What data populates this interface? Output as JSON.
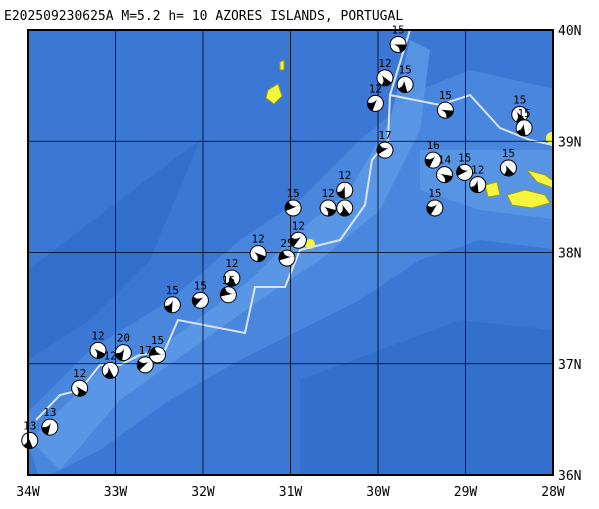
{
  "title": "E202509230625A M=5.2 h= 10 AZORES ISLANDS, PORTUGAL",
  "map": {
    "xlim": [
      -34,
      -28
    ],
    "ylim": [
      36,
      40
    ],
    "xticks": [
      {
        "value": -34,
        "label": "34W"
      },
      {
        "value": -33,
        "label": "33W"
      },
      {
        "value": -32,
        "label": "32W"
      },
      {
        "value": -31,
        "label": "31W"
      },
      {
        "value": -30,
        "label": "30W"
      },
      {
        "value": -29,
        "label": "29W"
      },
      {
        "value": -28,
        "label": "28W"
      }
    ],
    "yticks": [
      {
        "value": 36,
        "label": "36N"
      },
      {
        "value": 37,
        "label": "37N"
      },
      {
        "value": 38,
        "label": "38N"
      },
      {
        "value": 39,
        "label": "39N"
      },
      {
        "value": 40,
        "label": "40N"
      }
    ],
    "grid": true,
    "events": [
      {
        "lon": -29.77,
        "lat": 39.87,
        "depth": 15
      },
      {
        "lon": -29.92,
        "lat": 39.57,
        "depth": 12
      },
      {
        "lon": -29.69,
        "lat": 39.51,
        "depth": 15
      },
      {
        "lon": -30.03,
        "lat": 39.34,
        "depth": 12
      },
      {
        "lon": -29.92,
        "lat": 38.92,
        "depth": 17
      },
      {
        "lon": -29.23,
        "lat": 39.28,
        "depth": 15
      },
      {
        "lon": -28.38,
        "lat": 39.24,
        "depth": 15
      },
      {
        "lon": -28.33,
        "lat": 39.12,
        "depth": 15
      },
      {
        "lon": -29.37,
        "lat": 38.83,
        "depth": 16
      },
      {
        "lon": -29.01,
        "lat": 38.72,
        "depth": 15
      },
      {
        "lon": -29.24,
        "lat": 38.7,
        "depth": 14
      },
      {
        "lon": -28.51,
        "lat": 38.76,
        "depth": 15
      },
      {
        "lon": -28.86,
        "lat": 38.61,
        "depth": 12
      },
      {
        "lon": -29.35,
        "lat": 38.4,
        "depth": 15
      },
      {
        "lon": -30.97,
        "lat": 38.4,
        "depth": 15
      },
      {
        "lon": -30.57,
        "lat": 38.4,
        "depth": 12
      },
      {
        "lon": -30.38,
        "lat": 38.4,
        "depth": 12
      },
      {
        "lon": -30.38,
        "lat": 38.56,
        "depth": 12
      },
      {
        "lon": -30.91,
        "lat": 38.11,
        "depth": 12
      },
      {
        "lon": -31.04,
        "lat": 37.95,
        "depth": 25
      },
      {
        "lon": -31.37,
        "lat": 37.99,
        "depth": 12
      },
      {
        "lon": -31.67,
        "lat": 37.77,
        "depth": 12
      },
      {
        "lon": -32.35,
        "lat": 37.53,
        "depth": 15
      },
      {
        "lon": -32.03,
        "lat": 37.57,
        "depth": 15
      },
      {
        "lon": -31.71,
        "lat": 37.62,
        "depth": 16
      },
      {
        "lon": -33.2,
        "lat": 37.12,
        "depth": 12
      },
      {
        "lon": -33.06,
        "lat": 36.94,
        "depth": 12
      },
      {
        "lon": -32.91,
        "lat": 37.1,
        "depth": 20
      },
      {
        "lon": -32.66,
        "lat": 36.99,
        "depth": 17
      },
      {
        "lon": -32.52,
        "lat": 37.08,
        "depth": 15
      },
      {
        "lon": -33.41,
        "lat": 36.78,
        "depth": 12
      },
      {
        "lon": -33.98,
        "lat": 36.31,
        "depth": 13
      },
      {
        "lon": -33.75,
        "lat": 36.43,
        "depth": 13
      }
    ]
  }
}
